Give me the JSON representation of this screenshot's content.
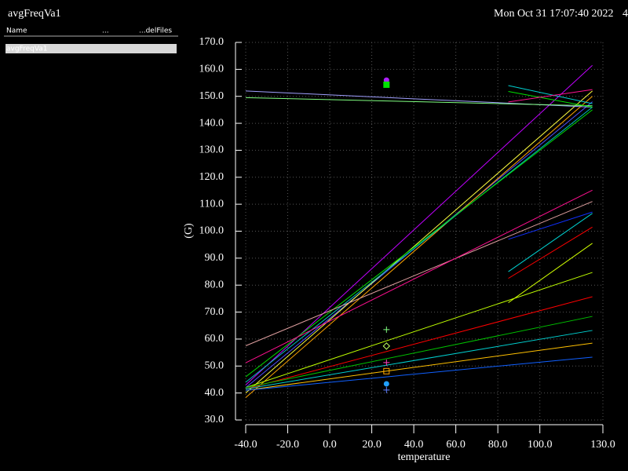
{
  "header": {
    "title": "avgFreqVa1",
    "timestamp": "Mon Oct 31 17:07:40 2022",
    "extra": "4"
  },
  "panel": {
    "columns": [
      "Name",
      "...",
      "...delFiles"
    ],
    "rows": [
      "avgFreqVa1"
    ]
  },
  "chart_data": {
    "type": "line",
    "xlabel": "temperature",
    "ylabel": "(G)",
    "xlim": [
      -40,
      130
    ],
    "ylim": [
      30,
      170
    ],
    "grid": true,
    "xticks": [
      {
        "value": -40,
        "label": "-40.0"
      },
      {
        "value": -20,
        "label": "-20.0"
      },
      {
        "value": 0,
        "label": "0.0"
      },
      {
        "value": 20,
        "label": "20.0"
      },
      {
        "value": 40,
        "label": "40.0"
      },
      {
        "value": 60,
        "label": "60.0"
      },
      {
        "value": 80,
        "label": "80.0"
      },
      {
        "value": 100,
        "label": "100.0"
      },
      {
        "value": 130,
        "label": "130.0"
      }
    ],
    "yticks": [
      {
        "value": 30,
        "label": "30.0"
      },
      {
        "value": 40,
        "label": "40.0"
      },
      {
        "value": 50,
        "label": "50.0"
      },
      {
        "value": 60,
        "label": "60.0"
      },
      {
        "value": 70,
        "label": "70.0"
      },
      {
        "value": 80,
        "label": "80.0"
      },
      {
        "value": 90,
        "label": "90.0"
      },
      {
        "value": 100,
        "label": "100.0"
      },
      {
        "value": 110,
        "label": "110.0"
      },
      {
        "value": 120,
        "label": "120.0"
      },
      {
        "value": 130,
        "label": "130.0"
      },
      {
        "value": 140,
        "label": "140.0"
      },
      {
        "value": 150,
        "label": "150.0"
      },
      {
        "value": 160,
        "label": "160.0"
      },
      {
        "value": 170,
        "label": "170.0"
      }
    ],
    "series": [
      {
        "color": "#c000ff",
        "x": [
          -40,
          125
        ],
        "values": [
          43,
          161.5
        ]
      },
      {
        "color": "#5050ff",
        "x": [
          -40,
          125
        ],
        "values": [
          42,
          148
        ]
      },
      {
        "color": "#ffa500",
        "x": [
          -40,
          125
        ],
        "values": [
          38.3,
          150
        ]
      },
      {
        "color": "#ffff40",
        "x": [
          -40,
          125
        ],
        "values": [
          40,
          152
        ]
      },
      {
        "color": "#00c0c0",
        "x": [
          -40,
          125
        ],
        "values": [
          44,
          146
        ]
      },
      {
        "color": "#00e000",
        "x": [
          -40,
          125
        ],
        "values": [
          46,
          145
        ]
      },
      {
        "color": "#a0a0ff",
        "x": [
          -40,
          125
        ],
        "values": [
          152,
          146
        ]
      },
      {
        "color": "#80ff80",
        "x": [
          -40,
          125
        ],
        "values": [
          149.5,
          146.5
        ]
      },
      {
        "color": "#e0a0a0",
        "x": [
          -40,
          125
        ],
        "values": [
          57.5,
          111
        ]
      },
      {
        "color": "#ff1090",
        "x": [
          -40,
          125
        ],
        "values": [
          51.2,
          115.2
        ]
      },
      {
        "color": "#c0ff00",
        "x": [
          -40,
          125
        ],
        "values": [
          42,
          84.7
        ]
      },
      {
        "color": "#ff0000",
        "x": [
          -40,
          125
        ],
        "values": [
          41.5,
          75.7
        ]
      },
      {
        "color": "#00c000",
        "x": [
          -40,
          125
        ],
        "values": [
          42,
          68.4
        ]
      },
      {
        "color": "#00d0d0",
        "x": [
          -40,
          125
        ],
        "values": [
          41.5,
          63.2
        ]
      },
      {
        "color": "#ffc000",
        "x": [
          -40,
          125
        ],
        "values": [
          41,
          58.5
        ]
      },
      {
        "color": "#1060ff",
        "x": [
          -40,
          125
        ],
        "values": [
          41,
          53.3
        ]
      },
      {
        "color": "#00d0d0",
        "x": [
          85,
          125
        ],
        "values": [
          154,
          147.3
        ]
      },
      {
        "color": "#00e000",
        "x": [
          85,
          125
        ],
        "values": [
          151.8,
          146
        ]
      },
      {
        "color": "#ff1090",
        "x": [
          85,
          125
        ],
        "values": [
          147.9,
          152.5
        ]
      },
      {
        "color": "#1030ff",
        "x": [
          85,
          125
        ],
        "values": [
          97,
          107.1
        ]
      },
      {
        "color": "#00d0d0",
        "x": [
          85,
          125
        ],
        "values": [
          85,
          106.6
        ]
      },
      {
        "color": "#ff0000",
        "x": [
          85,
          125
        ],
        "values": [
          82.5,
          101.5
        ]
      },
      {
        "color": "#d0ff00",
        "x": [
          85,
          125
        ],
        "values": [
          73.5,
          95.5
        ]
      },
      {
        "color": "#b020ff",
        "marker": "circle",
        "x": [
          27
        ],
        "values": [
          156
        ]
      },
      {
        "color": "#00e000",
        "marker": "square",
        "x": [
          27
        ],
        "values": [
          154.3
        ]
      },
      {
        "color": "#80ff80",
        "marker": "plus",
        "x": [
          27
        ],
        "values": [
          63.5
        ]
      },
      {
        "color": "#c0ff60",
        "marker": "diamond",
        "x": [
          27
        ],
        "values": [
          57.4
        ]
      },
      {
        "color": "#ff40c0",
        "marker": "plus",
        "x": [
          27
        ],
        "values": [
          51.3
        ]
      },
      {
        "color": "#ffa500",
        "marker": "square",
        "x": [
          27
        ],
        "values": [
          48.1
        ]
      },
      {
        "color": "#20a0ff",
        "marker": "circle",
        "x": [
          27
        ],
        "values": [
          43.4
        ]
      },
      {
        "color": "#6080ff",
        "marker": "plus",
        "x": [
          27
        ],
        "values": [
          41.1
        ]
      }
    ]
  }
}
